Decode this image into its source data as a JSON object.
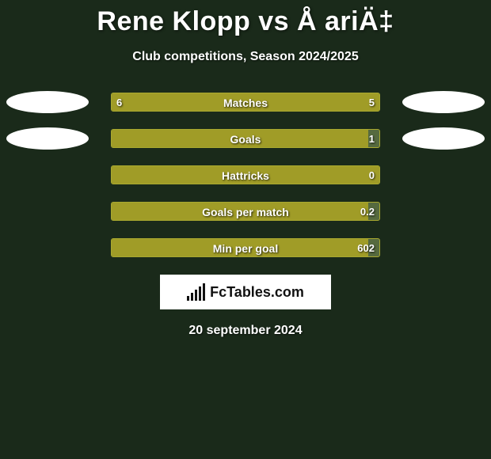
{
  "title": "Rene Klopp vs Å ariÄ‡",
  "subtitle": "Club competitions, Season 2024/2025",
  "footer_date": "20 september 2024",
  "fctables_brand": "FcTables.com",
  "bar_colors": {
    "fill": "#a09c27",
    "border": "#a9a92f",
    "track": "#566a3f"
  },
  "rows": [
    {
      "label": "Matches",
      "left_val": "6",
      "right_val": "5",
      "fill_pct": 100,
      "show_left_pill": true,
      "show_right_pill": true
    },
    {
      "label": "Goals",
      "left_val": "",
      "right_val": "1",
      "fill_pct": 96,
      "show_left_pill": true,
      "show_right_pill": true
    },
    {
      "label": "Hattricks",
      "left_val": "",
      "right_val": "0",
      "fill_pct": 100,
      "show_left_pill": false,
      "show_right_pill": false
    },
    {
      "label": "Goals per match",
      "left_val": "",
      "right_val": "0.2",
      "fill_pct": 96,
      "show_left_pill": false,
      "show_right_pill": false
    },
    {
      "label": "Min per goal",
      "left_val": "",
      "right_val": "602",
      "fill_pct": 96,
      "show_left_pill": false,
      "show_right_pill": false
    }
  ]
}
